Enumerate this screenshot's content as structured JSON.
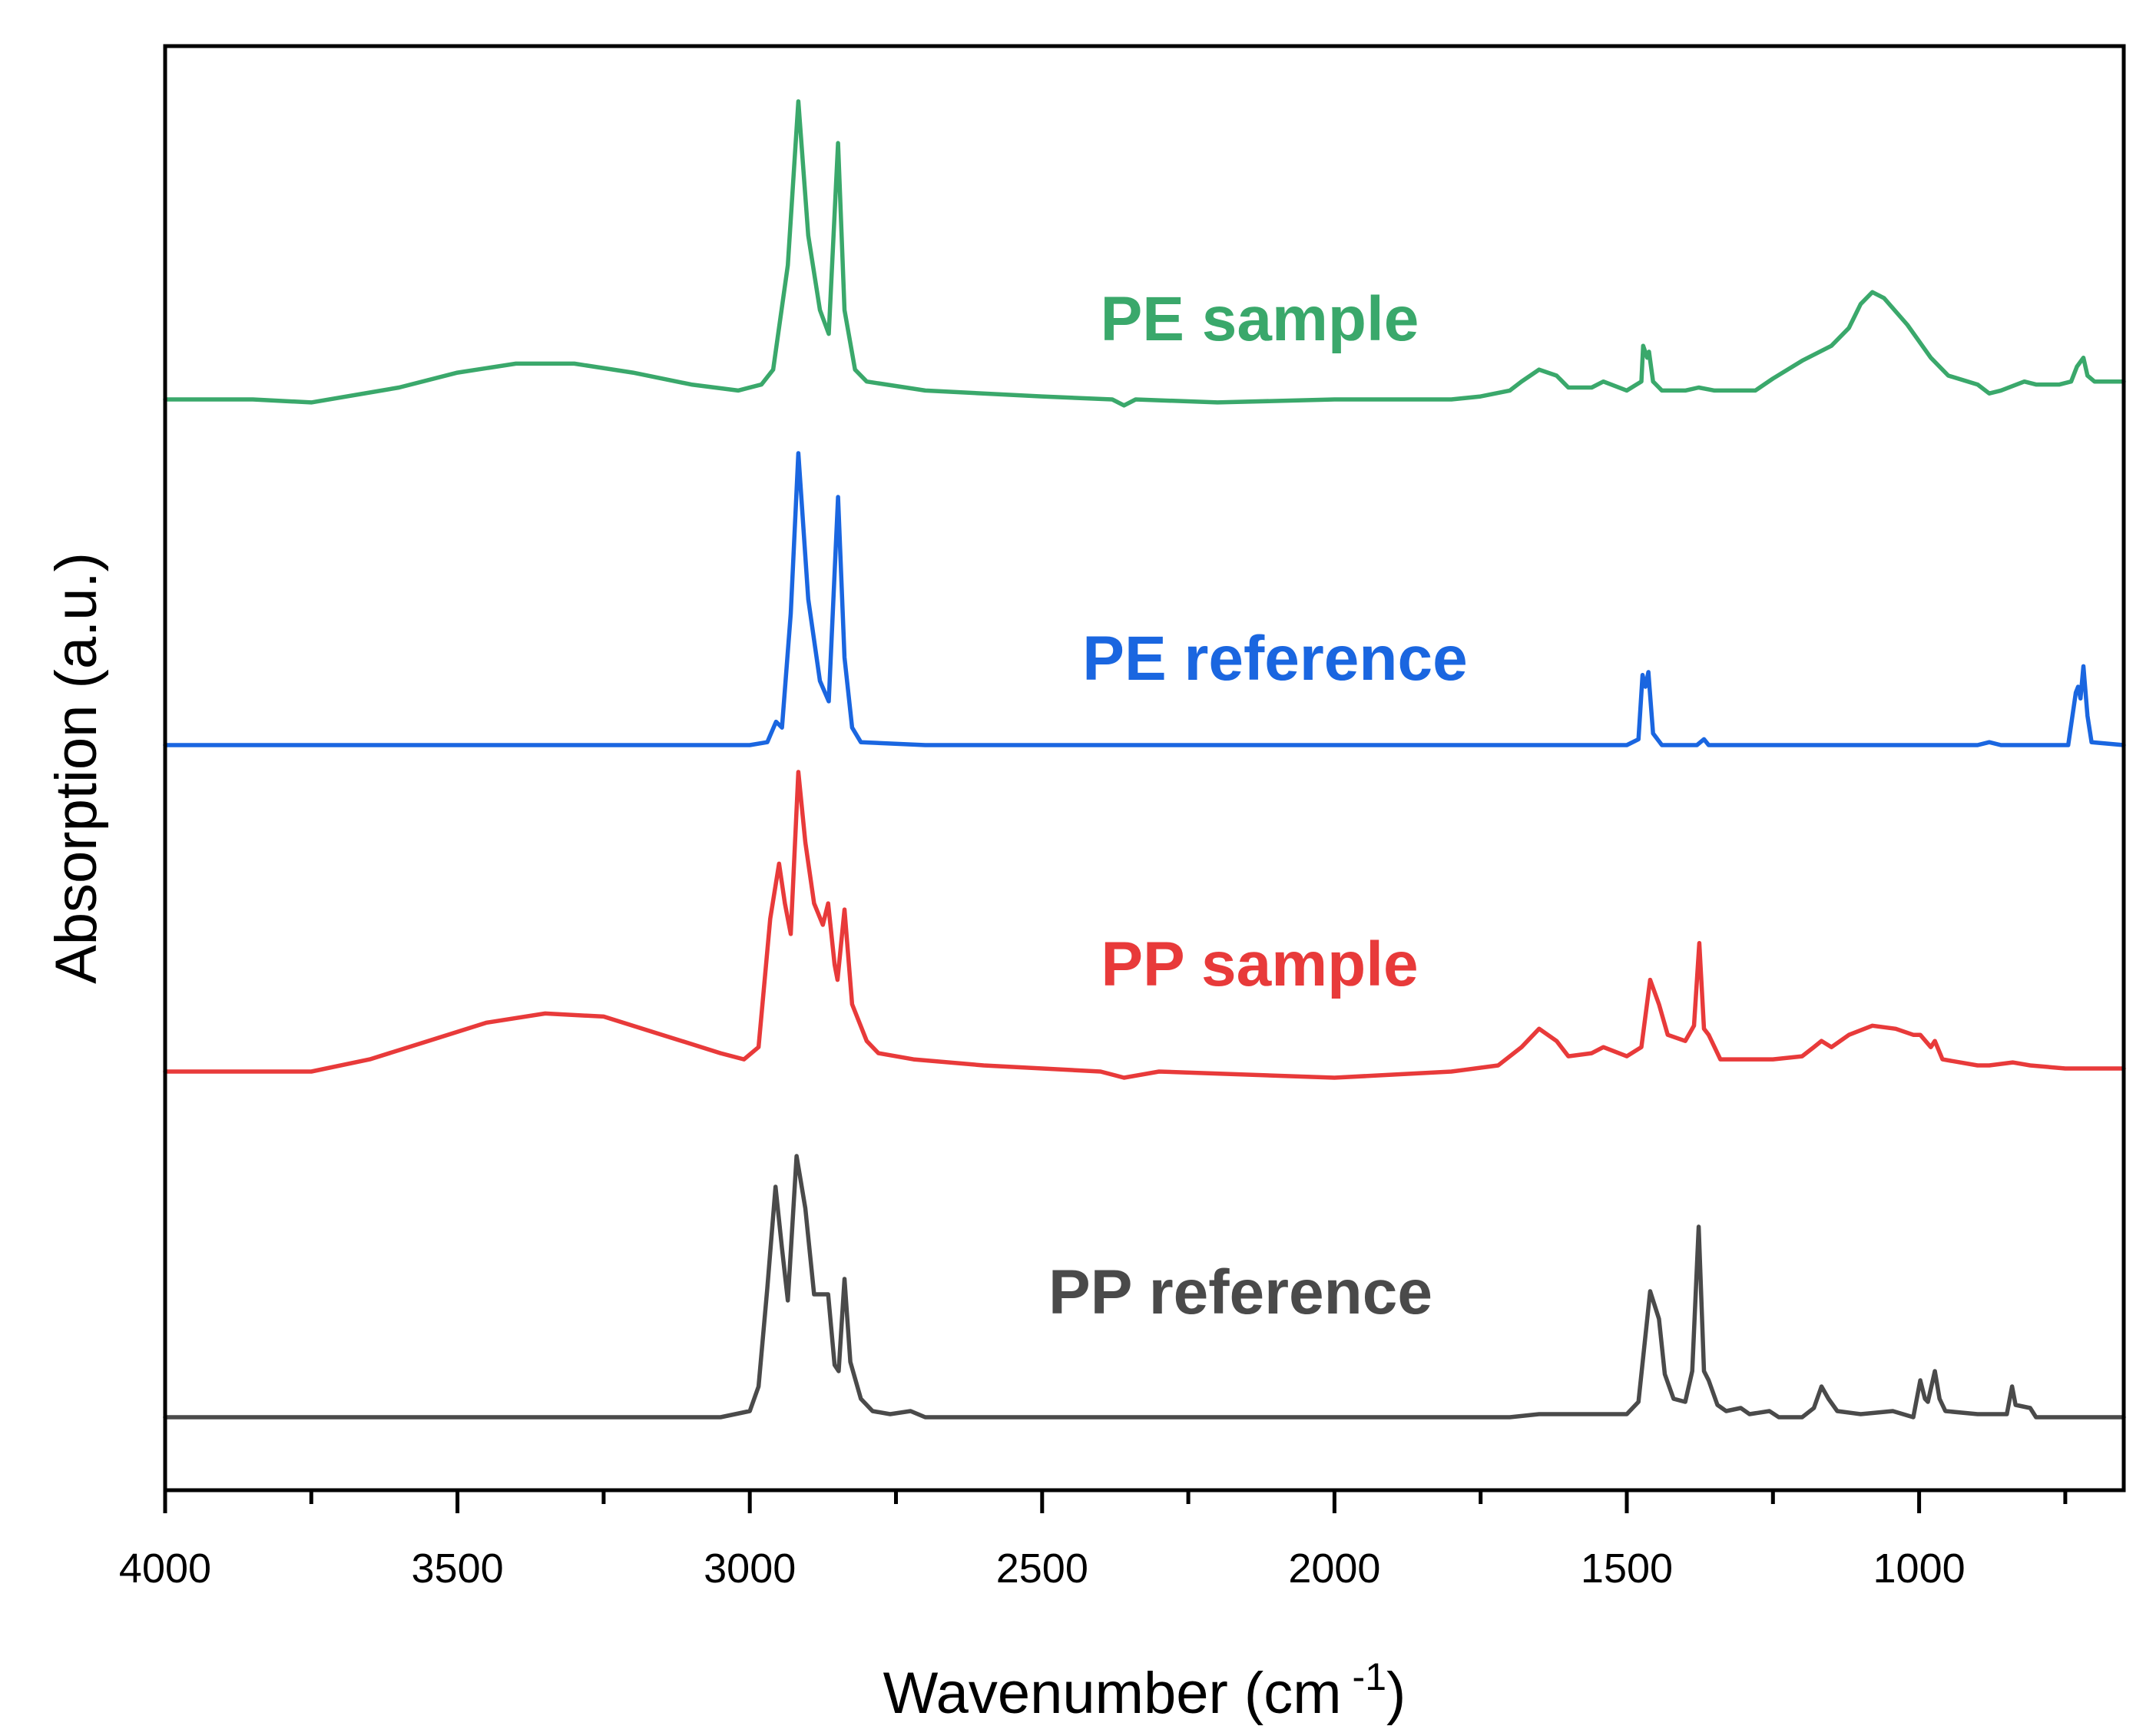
{
  "chart_data": {
    "type": "line",
    "title": "",
    "xlabel": "Wavenumber (cm",
    "xlabel_sup": "-1",
    "xlabel_close": ")",
    "ylabel": "Absorption (a.u.)",
    "xlim": [
      4000,
      650
    ],
    "x_reversed": true,
    "y_ticks_shown": false,
    "grid": false,
    "legend": "none; series labelled inline above each trace",
    "x_tick_labels": [
      "4000",
      "3500",
      "3000",
      "2500",
      "2000",
      "1500",
      "1000"
    ],
    "series": [
      {
        "name": "PE sample",
        "color": "#3aa86b",
        "offset": 3,
        "points": [
          [
            4000,
            0.0
          ],
          [
            3850,
            0.0
          ],
          [
            3750,
            -0.01
          ],
          [
            3600,
            0.04
          ],
          [
            3500,
            0.09
          ],
          [
            3400,
            0.12
          ],
          [
            3300,
            0.12
          ],
          [
            3200,
            0.09
          ],
          [
            3100,
            0.05
          ],
          [
            3020,
            0.03
          ],
          [
            2980,
            0.05
          ],
          [
            2960,
            0.1
          ],
          [
            2935,
            0.45
          ],
          [
            2917,
            1.0
          ],
          [
            2900,
            0.55
          ],
          [
            2880,
            0.3
          ],
          [
            2865,
            0.22
          ],
          [
            2849,
            0.86
          ],
          [
            2838,
            0.3
          ],
          [
            2820,
            0.1
          ],
          [
            2800,
            0.06
          ],
          [
            2700,
            0.03
          ],
          [
            2500,
            0.01
          ],
          [
            2380,
            0.0
          ],
          [
            2360,
            -0.02
          ],
          [
            2340,
            0.0
          ],
          [
            2200,
            -0.01
          ],
          [
            2000,
            0.0
          ],
          [
            1800,
            0.0
          ],
          [
            1750,
            0.01
          ],
          [
            1700,
            0.03
          ],
          [
            1680,
            0.06
          ],
          [
            1650,
            0.1
          ],
          [
            1620,
            0.08
          ],
          [
            1600,
            0.04
          ],
          [
            1560,
            0.04
          ],
          [
            1540,
            0.06
          ],
          [
            1500,
            0.03
          ],
          [
            1475,
            0.06
          ],
          [
            1472,
            0.18
          ],
          [
            1465,
            0.14
          ],
          [
            1462,
            0.16
          ],
          [
            1455,
            0.06
          ],
          [
            1440,
            0.03
          ],
          [
            1400,
            0.03
          ],
          [
            1377,
            0.04
          ],
          [
            1350,
            0.03
          ],
          [
            1280,
            0.03
          ],
          [
            1250,
            0.07
          ],
          [
            1200,
            0.13
          ],
          [
            1150,
            0.18
          ],
          [
            1120,
            0.24
          ],
          [
            1100,
            0.32
          ],
          [
            1080,
            0.36
          ],
          [
            1060,
            0.34
          ],
          [
            1020,
            0.25
          ],
          [
            980,
            0.14
          ],
          [
            950,
            0.08
          ],
          [
            900,
            0.05
          ],
          [
            880,
            0.02
          ],
          [
            860,
            0.03
          ],
          [
            820,
            0.06
          ],
          [
            800,
            0.05
          ],
          [
            760,
            0.05
          ],
          [
            740,
            0.06
          ],
          [
            730,
            0.11
          ],
          [
            719,
            0.14
          ],
          [
            712,
            0.08
          ],
          [
            700,
            0.06
          ],
          [
            650,
            0.06
          ]
        ]
      },
      {
        "name": "PE reference",
        "color": "#1a66e0",
        "offset": 2,
        "points": [
          [
            4000,
            0.0
          ],
          [
            3500,
            0.0
          ],
          [
            3000,
            0.0
          ],
          [
            2970,
            0.01
          ],
          [
            2955,
            0.08
          ],
          [
            2945,
            0.06
          ],
          [
            2930,
            0.45
          ],
          [
            2917,
            1.0
          ],
          [
            2900,
            0.5
          ],
          [
            2880,
            0.22
          ],
          [
            2865,
            0.15
          ],
          [
            2849,
            0.85
          ],
          [
            2838,
            0.3
          ],
          [
            2825,
            0.06
          ],
          [
            2810,
            0.01
          ],
          [
            2700,
            0.0
          ],
          [
            2000,
            0.0
          ],
          [
            1500,
            0.0
          ],
          [
            1480,
            0.02
          ],
          [
            1473,
            0.24
          ],
          [
            1468,
            0.2
          ],
          [
            1463,
            0.25
          ],
          [
            1455,
            0.04
          ],
          [
            1440,
            0.0
          ],
          [
            1380,
            0.0
          ],
          [
            1368,
            0.02
          ],
          [
            1360,
            0.0
          ],
          [
            900,
            0.0
          ],
          [
            880,
            0.01
          ],
          [
            860,
            0.0
          ],
          [
            745,
            0.0
          ],
          [
            732,
            0.18
          ],
          [
            728,
            0.2
          ],
          [
            724,
            0.16
          ],
          [
            719,
            0.27
          ],
          [
            712,
            0.1
          ],
          [
            705,
            0.01
          ],
          [
            650,
            0.0
          ]
        ]
      },
      {
        "name": "PP sample",
        "color": "#e83a3a",
        "offset": 1,
        "points": [
          [
            4000,
            0.0
          ],
          [
            3850,
            0.0
          ],
          [
            3750,
            0.0
          ],
          [
            3650,
            0.04
          ],
          [
            3550,
            0.1
          ],
          [
            3450,
            0.16
          ],
          [
            3350,
            0.19
          ],
          [
            3250,
            0.18
          ],
          [
            3150,
            0.12
          ],
          [
            3050,
            0.06
          ],
          [
            3010,
            0.04
          ],
          [
            2985,
            0.08
          ],
          [
            2965,
            0.5
          ],
          [
            2950,
            0.68
          ],
          [
            2940,
            0.55
          ],
          [
            2930,
            0.45
          ],
          [
            2917,
            0.98
          ],
          [
            2905,
            0.75
          ],
          [
            2890,
            0.55
          ],
          [
            2875,
            0.48
          ],
          [
            2866,
            0.55
          ],
          [
            2855,
            0.35
          ],
          [
            2850,
            0.3
          ],
          [
            2838,
            0.53
          ],
          [
            2825,
            0.22
          ],
          [
            2800,
            0.1
          ],
          [
            2780,
            0.06
          ],
          [
            2720,
            0.04
          ],
          [
            2600,
            0.02
          ],
          [
            2400,
            0.0
          ],
          [
            2360,
            -0.02
          ],
          [
            2300,
            0.0
          ],
          [
            2000,
            -0.02
          ],
          [
            1800,
            0.0
          ],
          [
            1720,
            0.02
          ],
          [
            1680,
            0.08
          ],
          [
            1650,
            0.14
          ],
          [
            1620,
            0.1
          ],
          [
            1600,
            0.05
          ],
          [
            1560,
            0.06
          ],
          [
            1540,
            0.08
          ],
          [
            1500,
            0.05
          ],
          [
            1475,
            0.08
          ],
          [
            1460,
            0.3
          ],
          [
            1445,
            0.22
          ],
          [
            1430,
            0.12
          ],
          [
            1400,
            0.1
          ],
          [
            1385,
            0.15
          ],
          [
            1376,
            0.42
          ],
          [
            1368,
            0.14
          ],
          [
            1360,
            0.12
          ],
          [
            1340,
            0.04
          ],
          [
            1300,
            0.04
          ],
          [
            1250,
            0.04
          ],
          [
            1200,
            0.05
          ],
          [
            1180,
            0.08
          ],
          [
            1167,
            0.1
          ],
          [
            1150,
            0.08
          ],
          [
            1120,
            0.12
          ],
          [
            1080,
            0.15
          ],
          [
            1040,
            0.14
          ],
          [
            1010,
            0.12
          ],
          [
            998,
            0.12
          ],
          [
            980,
            0.08
          ],
          [
            973,
            0.1
          ],
          [
            960,
            0.04
          ],
          [
            900,
            0.02
          ],
          [
            880,
            0.02
          ],
          [
            840,
            0.03
          ],
          [
            810,
            0.02
          ],
          [
            750,
            0.01
          ],
          [
            650,
            0.01
          ]
        ]
      },
      {
        "name": "PP reference",
        "color": "#4a4a4a",
        "offset": 0,
        "points": [
          [
            4000,
            0.0
          ],
          [
            3500,
            0.0
          ],
          [
            3050,
            0.0
          ],
          [
            3000,
            0.02
          ],
          [
            2985,
            0.1
          ],
          [
            2970,
            0.42
          ],
          [
            2956,
            0.75
          ],
          [
            2945,
            0.55
          ],
          [
            2935,
            0.38
          ],
          [
            2920,
            0.85
          ],
          [
            2905,
            0.68
          ],
          [
            2890,
            0.4
          ],
          [
            2875,
            0.4
          ],
          [
            2866,
            0.4
          ],
          [
            2855,
            0.17
          ],
          [
            2848,
            0.15
          ],
          [
            2838,
            0.45
          ],
          [
            2828,
            0.18
          ],
          [
            2810,
            0.06
          ],
          [
            2790,
            0.02
          ],
          [
            2760,
            0.01
          ],
          [
            2725,
            0.02
          ],
          [
            2700,
            0.0
          ],
          [
            2500,
            0.0
          ],
          [
            2000,
            0.0
          ],
          [
            1700,
            0.0
          ],
          [
            1650,
            0.01
          ],
          [
            1500,
            0.01
          ],
          [
            1480,
            0.05
          ],
          [
            1460,
            0.41
          ],
          [
            1445,
            0.32
          ],
          [
            1435,
            0.14
          ],
          [
            1420,
            0.06
          ],
          [
            1400,
            0.05
          ],
          [
            1388,
            0.15
          ],
          [
            1377,
            0.62
          ],
          [
            1368,
            0.15
          ],
          [
            1360,
            0.12
          ],
          [
            1345,
            0.04
          ],
          [
            1330,
            0.02
          ],
          [
            1305,
            0.03
          ],
          [
            1290,
            0.01
          ],
          [
            1256,
            0.02
          ],
          [
            1240,
            0.0
          ],
          [
            1200,
            0.0
          ],
          [
            1180,
            0.03
          ],
          [
            1167,
            0.1
          ],
          [
            1155,
            0.06
          ],
          [
            1140,
            0.02
          ],
          [
            1100,
            0.01
          ],
          [
            1045,
            0.02
          ],
          [
            1010,
            0.0
          ],
          [
            998,
            0.12
          ],
          [
            990,
            0.06
          ],
          [
            985,
            0.05
          ],
          [
            973,
            0.15
          ],
          [
            965,
            0.06
          ],
          [
            955,
            0.02
          ],
          [
            900,
            0.01
          ],
          [
            880,
            0.01
          ],
          [
            850,
            0.01
          ],
          [
            841,
            0.1
          ],
          [
            835,
            0.04
          ],
          [
            810,
            0.03
          ],
          [
            800,
            0.0
          ],
          [
            650,
            0.0
          ]
        ]
      }
    ]
  }
}
